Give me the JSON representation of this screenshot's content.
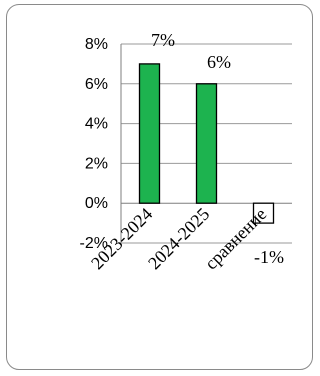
{
  "chart_data": {
    "type": "bar",
    "categories": [
      "2023-2024",
      "2024-2025",
      "сравнение"
    ],
    "values": [
      7,
      6,
      -1
    ],
    "data_labels": [
      "7%",
      "6%",
      "-1%"
    ],
    "ylim": [
      -2,
      8
    ],
    "yticks": [
      8,
      6,
      4,
      2,
      0,
      -2
    ],
    "ytick_labels": [
      "8%",
      "6%",
      "4%",
      "2%",
      "0%",
      "-2%"
    ],
    "grid": true,
    "legend": "none",
    "title": "",
    "xlabel": "",
    "ylabel": "",
    "colors": {
      "positive_fill": "#1db34f",
      "negative_fill": "#ffffff",
      "bar_stroke": "#000000",
      "grid": "#9a9a9a",
      "axis": "#7f7f7f"
    }
  }
}
